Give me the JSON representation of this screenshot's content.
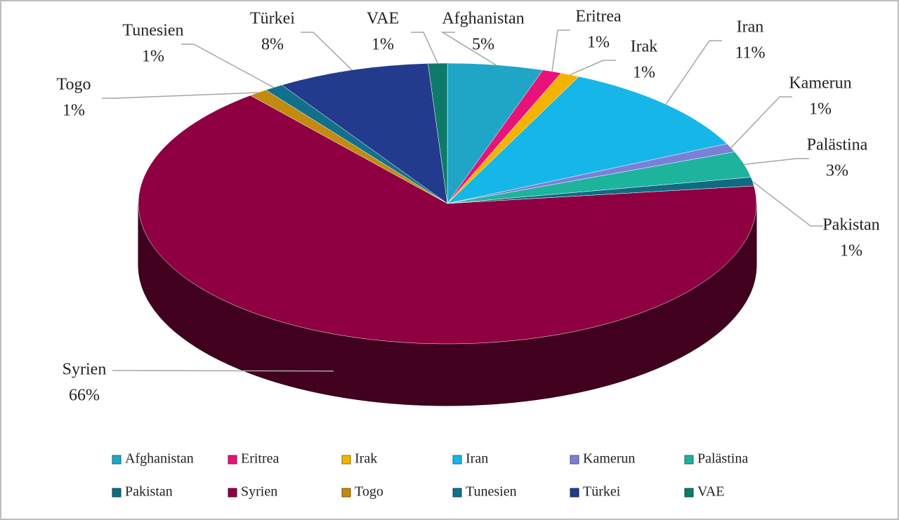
{
  "chart_data": {
    "type": "pie",
    "categories": [
      "Afghanistan",
      "Eritrea",
      "Irak",
      "Iran",
      "Kamerun",
      "Palästina",
      "Pakistan",
      "Syrien",
      "Togo",
      "Tunesien",
      "Türkei",
      "VAE"
    ],
    "values": [
      5,
      1,
      1,
      11,
      1,
      3,
      1,
      66,
      1,
      1,
      8,
      1
    ],
    "value_labels": [
      "5%",
      "1%",
      "1%",
      "11%",
      "1%",
      "3%",
      "1%",
      "66%",
      "1%",
      "1%",
      "8%",
      "1%"
    ],
    "colors": [
      "#1fa6c6",
      "#e8137a",
      "#f2b400",
      "#16b6e8",
      "#7a80d8",
      "#1db39c",
      "#0f6b82",
      "#8e0042",
      "#c28a0e",
      "#13708c",
      "#233b8c",
      "#0d7a6a"
    ],
    "legend": "bottom"
  }
}
